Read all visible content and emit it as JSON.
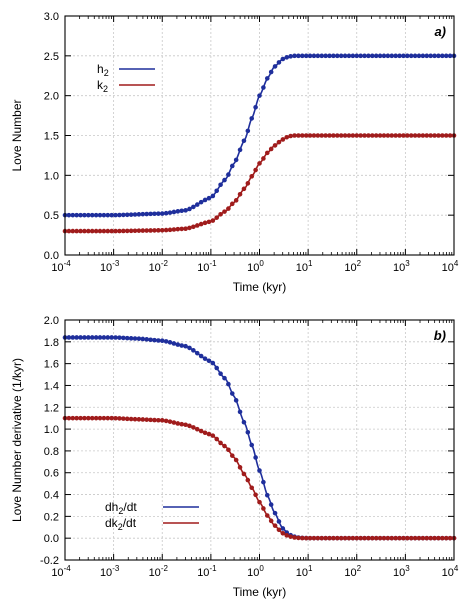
{
  "colors": {
    "h2": "#1f2f9c",
    "k2": "#a01c1c",
    "grid": "#c8c8c8",
    "frame": "#000000"
  },
  "chart_data": [
    {
      "type": "line",
      "panel_label": "a)",
      "xlabel": "Time (kyr)",
      "ylabel": "Love Number",
      "xscale": "log",
      "xlim": [
        0.0001,
        10000
      ],
      "ylim": [
        0,
        3.0
      ],
      "x_tick_labels": [
        "10-4",
        "10-3",
        "10-2",
        "10-1",
        "10^0",
        "10^1",
        "10^2",
        "10^3",
        "10^4"
      ],
      "x_tick_bases": [
        "10",
        "10",
        "10",
        "10",
        "10",
        "10",
        "10",
        "10",
        "10"
      ],
      "x_tick_exps": [
        "-4",
        "-3",
        "-2",
        "-1",
        "0",
        "1",
        "2",
        "3",
        "4"
      ],
      "y_ticks": [
        0.0,
        0.5,
        1.0,
        1.5,
        2.0,
        2.5,
        3.0
      ],
      "y_tick_labels": [
        "0.0",
        "0.5",
        "1.0",
        "1.5",
        "2.0",
        "2.5",
        "3.0"
      ],
      "grid": true,
      "legend_position": "top-left",
      "series": [
        {
          "key": "h2",
          "name": "h2",
          "name_base": "h",
          "name_sub": "2",
          "name_post": "",
          "x": [
            0.0001,
            0.001,
            0.01,
            0.03,
            0.1,
            0.2,
            0.3,
            0.5,
            0.7,
            1,
            1.5,
            2,
            3,
            4,
            5,
            7,
            10,
            100,
            1000,
            10000
          ],
          "y": [
            0.5,
            0.5,
            0.52,
            0.56,
            0.72,
            0.95,
            1.15,
            1.45,
            1.72,
            2.0,
            2.23,
            2.36,
            2.46,
            2.49,
            2.5,
            2.5,
            2.5,
            2.5,
            2.5,
            2.5
          ]
        },
        {
          "key": "k2",
          "name": "k2",
          "name_base": "k",
          "name_sub": "2",
          "name_post": "",
          "x": [
            0.0001,
            0.001,
            0.01,
            0.03,
            0.1,
            0.2,
            0.3,
            0.5,
            0.7,
            1,
            1.5,
            2,
            3,
            4,
            5,
            7,
            10,
            100,
            1000,
            10000
          ],
          "y": [
            0.3,
            0.3,
            0.31,
            0.33,
            0.42,
            0.55,
            0.66,
            0.84,
            0.99,
            1.15,
            1.29,
            1.37,
            1.45,
            1.49,
            1.5,
            1.5,
            1.5,
            1.5,
            1.5,
            1.5
          ]
        }
      ]
    },
    {
      "type": "line",
      "panel_label": "b)",
      "xlabel": "Time (kyr)",
      "ylabel": "Love Number derivative  (1/kyr)",
      "xscale": "log",
      "xlim": [
        0.0001,
        10000
      ],
      "ylim": [
        -0.2,
        2.0
      ],
      "x_tick_bases": [
        "10",
        "10",
        "10",
        "10",
        "10",
        "10",
        "10",
        "10",
        "10"
      ],
      "x_tick_exps": [
        "-4",
        "-3",
        "-2",
        "-1",
        "0",
        "1",
        "2",
        "3",
        "4"
      ],
      "y_ticks": [
        -0.2,
        0.0,
        0.2,
        0.4,
        0.6,
        0.8,
        1.0,
        1.2,
        1.4,
        1.6,
        1.8,
        2.0
      ],
      "y_tick_labels": [
        "-0.2",
        "0.0",
        "0.2",
        "0.4",
        "0.6",
        "0.8",
        "1.0",
        "1.2",
        "1.4",
        "1.6",
        "1.8",
        "2.0"
      ],
      "grid": true,
      "legend_position": "bottom-left",
      "series": [
        {
          "key": "h2",
          "name": "dh2/dt",
          "name_base": "dh",
          "name_sub": "2",
          "name_post": "/dt",
          "x": [
            0.0001,
            0.001,
            0.003,
            0.01,
            0.03,
            0.1,
            0.2,
            0.3,
            0.5,
            0.7,
            1,
            1.5,
            2,
            3,
            4,
            5,
            7,
            10,
            100,
            1000,
            10000
          ],
          "y": [
            1.84,
            1.84,
            1.83,
            1.81,
            1.76,
            1.62,
            1.46,
            1.3,
            1.05,
            0.85,
            0.62,
            0.38,
            0.24,
            0.09,
            0.035,
            0.015,
            0.003,
            0.0,
            0.0,
            0.0,
            0.0
          ]
        },
        {
          "key": "k2",
          "name": "dk2/dt",
          "name_base": "dk",
          "name_sub": "2",
          "name_post": "/dt",
          "x": [
            0.0001,
            0.001,
            0.003,
            0.01,
            0.03,
            0.1,
            0.2,
            0.3,
            0.5,
            0.7,
            1,
            1.5,
            2,
            3,
            4,
            5,
            7,
            10,
            100,
            1000,
            10000
          ],
          "y": [
            1.1,
            1.1,
            1.09,
            1.08,
            1.04,
            0.95,
            0.84,
            0.74,
            0.58,
            0.46,
            0.33,
            0.2,
            0.12,
            0.045,
            0.018,
            0.007,
            0.001,
            0.0,
            0.0,
            0.0,
            0.0
          ]
        }
      ]
    }
  ]
}
